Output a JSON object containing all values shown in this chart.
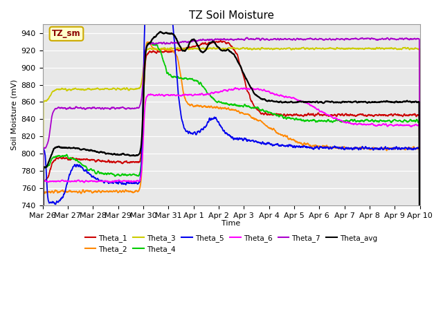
{
  "title": "TZ Soil Moisture",
  "ylabel": "Soil Moisture (mV)",
  "xlabel": "Time",
  "ylim": [
    740,
    950
  ],
  "bg_color": "#e8e8e8",
  "legend_label": "TZ_sm",
  "legend_box_color": "#ffffcc",
  "legend_box_edge": "#ccaa00",
  "series_colors": {
    "Theta_1": "#cc0000",
    "Theta_2": "#ff8800",
    "Theta_3": "#cccc00",
    "Theta_4": "#00cc00",
    "Theta_5": "#0000ee",
    "Theta_6": "#ff00ff",
    "Theta_7": "#aa00cc",
    "Theta_avg": "#000000"
  },
  "x_tick_labels": [
    "Mar 26",
    "Mar 27",
    "Mar 28",
    "Mar 29",
    "Mar 30",
    "Mar 31",
    "Apr 1",
    "Apr 2",
    "Apr 3",
    "Apr 4",
    "Apr 5",
    "Apr 6",
    "Apr 7",
    "Apr 8",
    "Apr 9",
    "Apr 10"
  ],
  "x_tick_days": [
    0,
    1,
    2,
    3,
    4,
    5,
    6,
    7,
    8,
    9,
    10,
    11,
    12,
    13,
    14,
    15
  ]
}
